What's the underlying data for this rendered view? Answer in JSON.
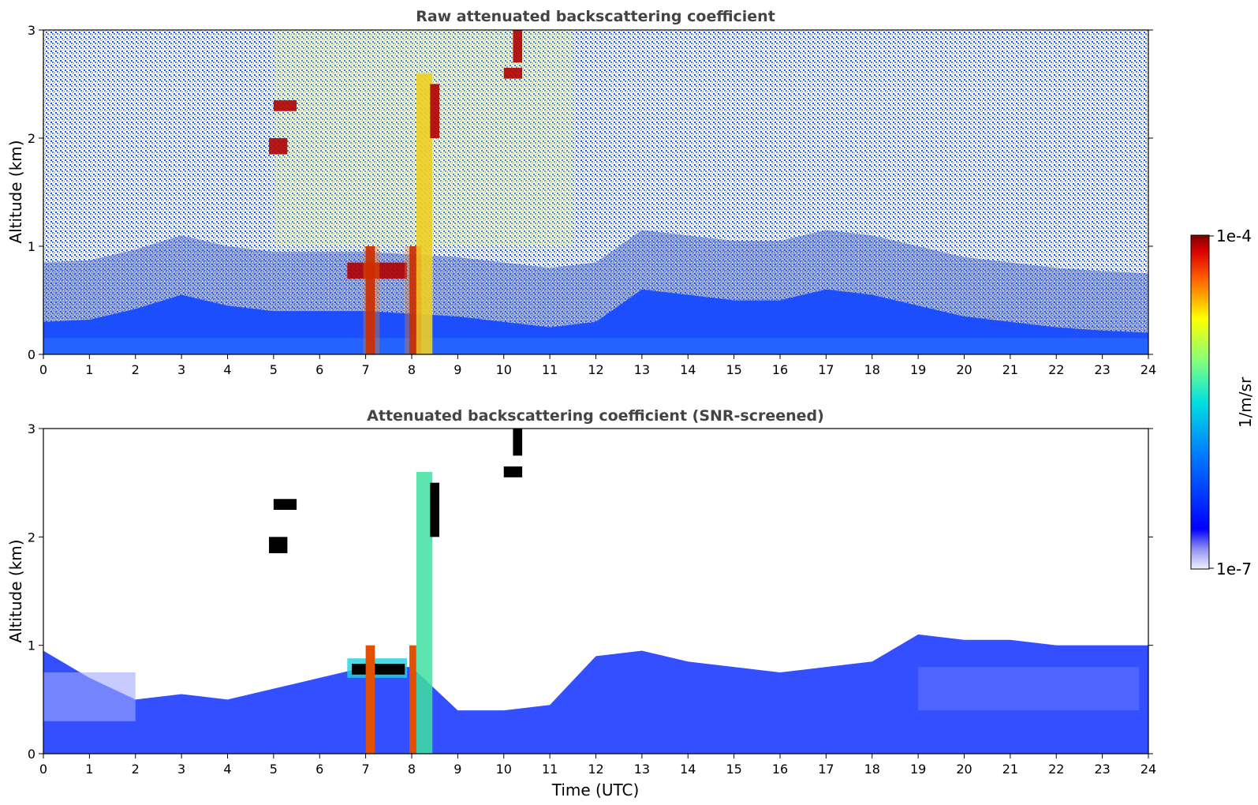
{
  "chart_data": [
    {
      "type": "heatmap",
      "title": "Raw attenuated backscattering coefficient",
      "xlabel": "",
      "ylabel": "Altitude (km)",
      "xlim": [
        0,
        24
      ],
      "ylim": [
        0,
        3
      ],
      "x_ticks": [
        "0",
        "1",
        "2",
        "3",
        "4",
        "5",
        "6",
        "7",
        "8",
        "9",
        "10",
        "11",
        "12",
        "13",
        "14",
        "15",
        "16",
        "17",
        "18",
        "19",
        "20",
        "21",
        "22",
        "23",
        "24"
      ],
      "y_ticks": [
        "0",
        "1",
        "2",
        "3"
      ],
      "grid": false,
      "features": {
        "boundary_layer_top_km": [
          [
            0,
            0.3
          ],
          [
            1,
            0.32
          ],
          [
            2,
            0.42
          ],
          [
            3,
            0.55
          ],
          [
            4,
            0.45
          ],
          [
            5,
            0.4
          ],
          [
            6,
            0.4
          ],
          [
            7,
            0.4
          ],
          [
            9,
            0.35
          ],
          [
            10,
            0.3
          ],
          [
            11,
            0.25
          ],
          [
            12,
            0.3
          ],
          [
            13,
            0.6
          ],
          [
            14,
            0.55
          ],
          [
            15,
            0.5
          ],
          [
            16,
            0.5
          ],
          [
            17,
            0.6
          ],
          [
            18,
            0.55
          ],
          [
            19,
            0.45
          ],
          [
            20,
            0.35
          ],
          [
            21,
            0.3
          ],
          [
            22,
            0.25
          ],
          [
            23,
            0.22
          ],
          [
            24,
            0.2
          ]
        ],
        "cloud_segments": [
          {
            "t0": 6.6,
            "t1": 7.9,
            "alt_km": [
              0.7,
              0.85
            ],
            "level": "high"
          },
          {
            "t0": 7.0,
            "t1": 7.2,
            "alt_km": [
              0,
              1.0
            ],
            "level": "high"
          },
          {
            "t0": 7.95,
            "t1": 8.1,
            "alt_km": [
              0,
              1.0
            ],
            "level": "high"
          },
          {
            "t0": 8.1,
            "t1": 8.45,
            "alt_km": [
              0,
              2.6
            ],
            "level": "medium"
          },
          {
            "t0": 5.0,
            "t1": 5.5,
            "alt_km": [
              2.25,
              2.35
            ],
            "level": "high"
          },
          {
            "t0": 4.9,
            "t1": 5.3,
            "alt_km": [
              1.85,
              2.0
            ],
            "level": "high"
          },
          {
            "t0": 10.0,
            "t1": 10.4,
            "alt_km": [
              2.55,
              2.65
            ],
            "level": "high"
          },
          {
            "t0": 10.2,
            "t1": 10.4,
            "alt_km": [
              2.7,
              3.0
            ],
            "level": "high"
          },
          {
            "t0": 8.4,
            "t1": 8.6,
            "alt_km": [
              2.0,
              2.5
            ],
            "level": "high"
          }
        ]
      }
    },
    {
      "type": "heatmap",
      "title": "Attenuated backscattering coefficient (SNR-screened)",
      "xlabel": "Time (UTC)",
      "ylabel": "Altitude (km)",
      "xlim": [
        0,
        24
      ],
      "ylim": [
        0,
        3
      ],
      "x_ticks": [
        "0",
        "1",
        "2",
        "3",
        "4",
        "5",
        "6",
        "7",
        "8",
        "9",
        "10",
        "11",
        "12",
        "13",
        "14",
        "15",
        "16",
        "17",
        "18",
        "19",
        "20",
        "21",
        "22",
        "23",
        "24"
      ],
      "y_ticks": [
        "0",
        "1",
        "2",
        "3"
      ],
      "grid": false,
      "features": {
        "valid_signal_top_km": [
          [
            0,
            0.95
          ],
          [
            1,
            0.7
          ],
          [
            2,
            0.5
          ],
          [
            3,
            0.55
          ],
          [
            4,
            0.5
          ],
          [
            5,
            0.6
          ],
          [
            6,
            0.7
          ],
          [
            7,
            0.8
          ],
          [
            8,
            0.8
          ],
          [
            9,
            0.4
          ],
          [
            10,
            0.4
          ],
          [
            11,
            0.45
          ],
          [
            12,
            0.9
          ],
          [
            13,
            0.95
          ],
          [
            14,
            0.85
          ],
          [
            15,
            0.8
          ],
          [
            16,
            0.75
          ],
          [
            17,
            0.8
          ],
          [
            18,
            0.85
          ],
          [
            19,
            1.1
          ],
          [
            20,
            1.05
          ],
          [
            21,
            1.05
          ],
          [
            22,
            1.0
          ],
          [
            23,
            1.0
          ],
          [
            24,
            1.0
          ]
        ]
      }
    }
  ],
  "colorbar": {
    "label": "1/m/sr",
    "max_label": "1e-4",
    "min_label": "1e-7",
    "scale": "log",
    "colormap": "jet"
  },
  "colors": {
    "title_text": "#444444",
    "background": "#ffffff",
    "cloud_high": "#b00000",
    "cloud_medium": "#f0d020",
    "boundary_layer": "#1040ff",
    "signal_noise": "#4080ff"
  }
}
